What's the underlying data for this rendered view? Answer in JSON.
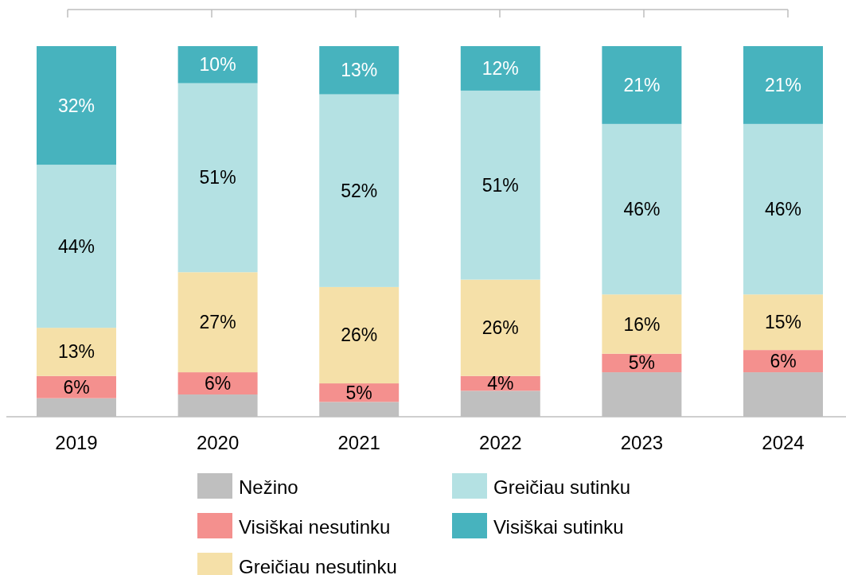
{
  "chart_data": {
    "type": "bar",
    "stacked": true,
    "categories": [
      "2019",
      "2020",
      "2021",
      "2022",
      "2023",
      "2024"
    ],
    "ylim": [
      0,
      100
    ],
    "tick_labels": "x",
    "legend": "bottom",
    "series": [
      {
        "name": "Nežino",
        "color": "#bfbfbf",
        "values": [
          5,
          6,
          4,
          7,
          12,
          12
        ]
      },
      {
        "name": "Visiškai nesutinku",
        "color": "#f4908e",
        "values": [
          6,
          6,
          5,
          4,
          5,
          6
        ],
        "value_labels": [
          "6%",
          "6%",
          "5%",
          "4%",
          "5%",
          "6%"
        ]
      },
      {
        "name": "Greičiau nesutinku",
        "color": "#f5e0a8",
        "values": [
          13,
          27,
          26,
          26,
          16,
          15
        ],
        "value_labels": [
          "13%",
          "27%",
          "26%",
          "26%",
          "16%",
          "15%"
        ]
      },
      {
        "name": "Greičiau sutinku",
        "color": "#b4e1e3",
        "values": [
          44,
          51,
          52,
          51,
          46,
          46
        ],
        "value_labels": [
          "44%",
          "51%",
          "52%",
          "51%",
          "46%",
          "46%"
        ]
      },
      {
        "name": "Visiškai sutinku",
        "color": "#47b3be",
        "values": [
          32,
          10,
          13,
          12,
          21,
          21
        ],
        "value_labels": [
          "32%",
          "10%",
          "13%",
          "12%",
          "21%",
          "21%"
        ]
      }
    ]
  }
}
